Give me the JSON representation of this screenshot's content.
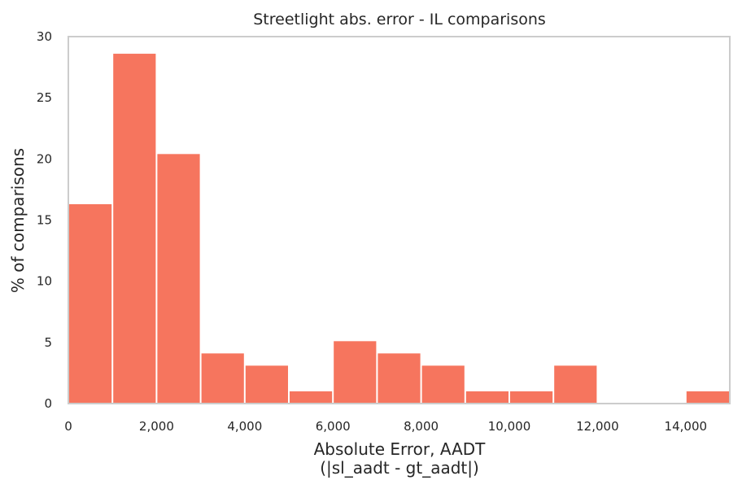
{
  "chart_data": {
    "type": "bar",
    "title": "Streetlight abs. error - IL comparisons",
    "xlabel": "Absolute Error, AADT",
    "xlabel_line2": "(|sl_aadt - gt_aadt|)",
    "ylabel": "% of comparisons",
    "xlim": [
      0,
      15000
    ],
    "ylim": [
      0,
      30
    ],
    "grid": false,
    "bar_color": "#f6755e",
    "bin_width": 1000,
    "bins": [
      {
        "x0": 0,
        "x1": 1000,
        "value": 16.3
      },
      {
        "x0": 1000,
        "x1": 2000,
        "value": 28.6
      },
      {
        "x0": 2000,
        "x1": 3000,
        "value": 20.4
      },
      {
        "x0": 3000,
        "x1": 4000,
        "value": 4.1
      },
      {
        "x0": 4000,
        "x1": 5000,
        "value": 3.1
      },
      {
        "x0": 5000,
        "x1": 6000,
        "value": 1.0
      },
      {
        "x0": 6000,
        "x1": 7000,
        "value": 5.1
      },
      {
        "x0": 7000,
        "x1": 8000,
        "value": 4.1
      },
      {
        "x0": 8000,
        "x1": 9000,
        "value": 3.1
      },
      {
        "x0": 9000,
        "x1": 10000,
        "value": 1.0
      },
      {
        "x0": 10000,
        "x1": 11000,
        "value": 1.0
      },
      {
        "x0": 11000,
        "x1": 12000,
        "value": 3.1
      },
      {
        "x0": 12000,
        "x1": 13000,
        "value": 0
      },
      {
        "x0": 13000,
        "x1": 14000,
        "value": 0
      },
      {
        "x0": 14000,
        "x1": 15000,
        "value": 1.0
      }
    ],
    "x_ticks": [
      0,
      2000,
      4000,
      6000,
      8000,
      10000,
      12000,
      14000
    ],
    "x_tick_labels": [
      "0",
      "2,000",
      "4,000",
      "6,000",
      "8,000",
      "10,000",
      "12,000",
      "14,000"
    ],
    "y_ticks": [
      0,
      5,
      10,
      15,
      20,
      25,
      30
    ],
    "y_tick_labels": [
      "0",
      "5",
      "10",
      "15",
      "20",
      "25",
      "30"
    ]
  }
}
